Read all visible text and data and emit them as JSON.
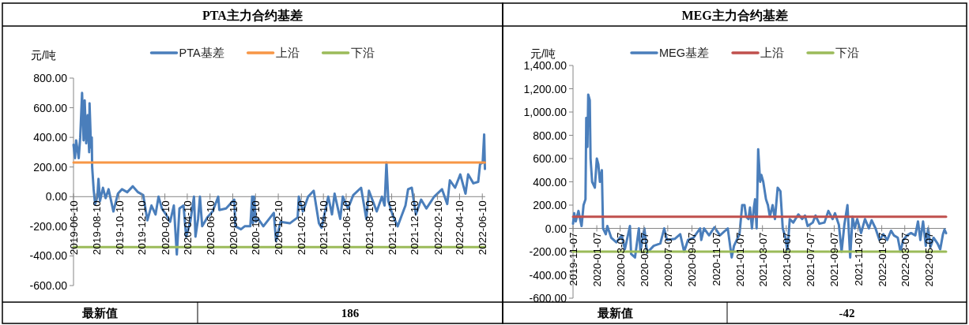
{
  "chart_data": [
    {
      "type": "line",
      "title": "PTA主力合约基差",
      "ylabel": "元/吨",
      "legend": "top",
      "xlim": [
        "2019-06-10",
        "2022-06-18"
      ],
      "xticks": [
        "2019-06-10",
        "2019-08-10",
        "2019-10-10",
        "2019-12-10",
        "2020-02-10",
        "2020-04-10",
        "2020-06-10",
        "2020-08-10",
        "2020-10-10",
        "2020-12-10",
        "2021-02-10",
        "2021-04-10",
        "2021-06-10",
        "2021-08-10",
        "2021-10-10",
        "2021-12-10",
        "2022-02-10",
        "2022-04-10",
        "2022-06-10"
      ],
      "ylim": [
        -600,
        800
      ],
      "yticks": [
        {
          "value": -600,
          "label": "-600.00"
        },
        {
          "value": -400,
          "label": "-400.00"
        },
        {
          "value": -200,
          "label": "-200.00"
        },
        {
          "value": 0,
          "label": "0.00"
        },
        {
          "value": 200,
          "label": "200.00"
        },
        {
          "value": 400,
          "label": "400.00"
        },
        {
          "value": 600,
          "label": "600.00"
        },
        {
          "value": 800,
          "label": "800.00"
        }
      ],
      "series": [
        {
          "name": "PTA基差",
          "color": "#4a7ebb",
          "x": [
            "2019-06-10",
            "2019-06-14",
            "2019-06-17",
            "2019-06-24",
            "2019-06-28",
            "2019-07-03",
            "2019-07-07",
            "2019-07-10",
            "2019-07-14",
            "2019-07-18",
            "2019-07-22",
            "2019-07-23",
            "2019-07-27",
            "2019-07-29",
            "2019-07-30",
            "2019-08-03",
            "2019-08-07",
            "2019-08-13",
            "2019-08-16",
            "2019-08-20",
            "2019-08-28",
            "2019-09-04",
            "2019-09-12",
            "2019-09-25",
            "2019-10-07",
            "2019-10-18",
            "2019-11-01",
            "2019-11-16",
            "2019-11-30",
            "2019-12-14",
            "2019-12-25",
            "2020-01-05",
            "2020-01-16",
            "2020-01-24",
            "2020-02-02",
            "2020-02-13",
            "2020-02-24",
            "2020-03-05",
            "2020-03-13",
            "2020-03-20",
            "2020-03-31",
            "2020-04-07",
            "2020-04-18",
            "2020-04-28",
            "2020-05-02",
            "2020-05-09",
            "2020-05-14",
            "2020-05-20",
            "2020-06-03",
            "2020-06-17",
            "2020-07-02",
            "2020-07-05",
            "2020-07-23",
            "2020-08-14",
            "2020-08-17",
            "2020-09-01",
            "2020-09-11",
            "2020-09-26",
            "2020-10-01",
            "2020-10-03",
            "2020-10-06",
            "2020-10-11",
            "2020-10-17",
            "2020-10-31",
            "2020-11-28",
            "2020-12-04",
            "2020-12-16",
            "2021-01-10",
            "2021-01-31",
            "2021-02-03",
            "2021-02-14",
            "2021-02-28",
            "2021-03-15",
            "2021-03-29",
            "2021-04-05",
            "2021-04-23",
            "2021-05-03",
            "2021-05-10",
            "2021-05-25",
            "2021-06-01",
            "2021-06-15",
            "2021-06-29",
            "2021-07-20",
            "2021-08-03",
            "2021-08-10",
            "2021-08-31",
            "2021-09-14",
            "2021-09-21",
            "2021-09-26",
            "2021-10-01",
            "2021-10-12",
            "2021-10-26",
            "2021-11-16",
            "2021-11-23",
            "2021-12-03",
            "2021-12-14",
            "2021-12-28",
            "2022-01-11",
            "2022-02-01",
            "2022-02-22",
            "2022-03-08",
            "2022-03-15",
            "2022-03-29",
            "2022-04-12",
            "2022-04-26",
            "2022-05-03",
            "2022-05-17",
            "2022-05-30",
            "2022-06-04",
            "2022-06-11",
            "2022-06-15",
            "2022-06-17"
          ],
          "values": [
            350,
            260,
            380,
            260,
            400,
            700,
            380,
            650,
            360,
            550,
            300,
            630,
            330,
            400,
            200,
            50,
            -50,
            0,
            120,
            -30,
            60,
            -10,
            50,
            -100,
            20,
            50,
            30,
            70,
            30,
            10,
            -160,
            -60,
            -120,
            0,
            -80,
            -120,
            -170,
            -60,
            -390,
            -80,
            -60,
            -270,
            -170,
            0,
            -270,
            -150,
            0,
            -200,
            -140,
            -100,
            0,
            -90,
            -80,
            -20,
            -200,
            -220,
            -200,
            -200,
            0,
            -180,
            0,
            -170,
            -150,
            -200,
            -110,
            -300,
            -170,
            -180,
            -140,
            0,
            -100,
            0,
            40,
            -180,
            -210,
            0,
            -120,
            20,
            -150,
            0,
            -80,
            10,
            60,
            -150,
            40,
            -100,
            0,
            -60,
            230,
            -30,
            -120,
            -200,
            -60,
            50,
            60,
            -120,
            -20,
            -80,
            0,
            50,
            -50,
            110,
            60,
            150,
            20,
            150,
            90,
            100,
            220,
            230,
            420,
            186
          ]
        },
        {
          "name": "上沿",
          "color": "#f79646",
          "x": [
            "2019-06-10",
            "2022-06-17"
          ],
          "values": [
            230,
            230
          ]
        },
        {
          "name": "下沿",
          "color": "#9bbb59",
          "x": [
            "2019-06-10",
            "2022-06-17"
          ],
          "values": [
            -340,
            -340
          ]
        }
      ],
      "annotations": [
        "最新值",
        "186"
      ]
    },
    {
      "type": "line",
      "title": "MEG主力合约基差",
      "ylabel": "元/吨",
      "legend": "top",
      "xlim": [
        "2019-11-07",
        "2022-06-21"
      ],
      "xticks": [
        "2019-11-07",
        "2020-01-07",
        "2020-03-07",
        "2020-05-07",
        "2020-07-07",
        "2020-09-07",
        "2020-11-07",
        "2021-01-07",
        "2021-03-07",
        "2021-05-07",
        "2021-07-07",
        "2021-09-07",
        "2021-11-07",
        "2022-01-07",
        "2022-03-07",
        "2022-05-07"
      ],
      "ylim": [
        -600,
        1400
      ],
      "yticks": [
        {
          "value": -600,
          "label": "-600.00"
        },
        {
          "value": -400,
          "label": "-400.00"
        },
        {
          "value": -200,
          "label": "-200.00"
        },
        {
          "value": 0,
          "label": "0.00"
        },
        {
          "value": 200,
          "label": "200.00"
        },
        {
          "value": 400,
          "label": "400.00"
        },
        {
          "value": 600,
          "label": "600.00"
        },
        {
          "value": 800,
          "label": "800.00"
        },
        {
          "value": 1000,
          "label": "1,000.00"
        },
        {
          "value": 1200,
          "label": "1,200.00"
        },
        {
          "value": 1400,
          "label": "1,400.00"
        }
      ],
      "series": [
        {
          "name": "MEG基差",
          "color": "#4a7ebb",
          "x": [
            "2019-11-07",
            "2019-11-10",
            "2019-11-14",
            "2019-11-21",
            "2019-11-25",
            "2019-11-29",
            "2019-12-04",
            "2019-12-09",
            "2019-12-11",
            "2019-12-14",
            "2019-12-16",
            "2019-12-20",
            "2019-12-22",
            "2019-12-26",
            "2020-01-02",
            "2020-01-07",
            "2020-01-11",
            "2020-01-15",
            "2020-01-20",
            "2020-01-23",
            "2020-01-30",
            "2020-02-03",
            "2020-02-13",
            "2020-02-26",
            "2020-03-11",
            "2020-03-19",
            "2020-04-01",
            "2020-04-04",
            "2020-04-14",
            "2020-04-24",
            "2020-04-28",
            "2020-05-08",
            "2020-05-15",
            "2020-06-01",
            "2020-06-18",
            "2020-06-28",
            "2020-07-05",
            "2020-07-25",
            "2020-08-08",
            "2020-08-18",
            "2020-08-28",
            "2020-09-11",
            "2020-09-28",
            "2020-10-01",
            "2020-10-08",
            "2020-10-21",
            "2020-11-04",
            "2020-11-18",
            "2020-12-08",
            "2020-12-18",
            "2020-12-24",
            "2021-01-07",
            "2021-01-14",
            "2021-01-20",
            "2021-01-24",
            "2021-01-30",
            "2021-02-03",
            "2021-02-08",
            "2021-02-13",
            "2021-02-16",
            "2021-02-20",
            "2021-02-24",
            "2021-03-01",
            "2021-03-04",
            "2021-03-09",
            "2021-03-16",
            "2021-03-21",
            "2021-03-26",
            "2021-04-02",
            "2021-04-08",
            "2021-04-15",
            "2021-04-22",
            "2021-04-28",
            "2021-05-05",
            "2021-05-10",
            "2021-05-16",
            "2021-05-25",
            "2021-06-07",
            "2021-06-17",
            "2021-06-24",
            "2021-07-01",
            "2021-07-14",
            "2021-07-21",
            "2021-07-31",
            "2021-08-13",
            "2021-08-23",
            "2021-09-03",
            "2021-09-09",
            "2021-09-19",
            "2021-09-26",
            "2021-10-03",
            "2021-10-11",
            "2021-10-18",
            "2021-10-24",
            "2021-10-30",
            "2021-11-05",
            "2021-11-15",
            "2021-11-25",
            "2021-12-05",
            "2021-12-12",
            "2021-12-22",
            "2022-01-01",
            "2022-01-11",
            "2022-01-21",
            "2022-01-31",
            "2022-02-07",
            "2022-02-17",
            "2022-02-24",
            "2022-03-03",
            "2022-03-13",
            "2022-03-23",
            "2022-04-03",
            "2022-04-10",
            "2022-04-16",
            "2022-04-23",
            "2022-04-30",
            "2022-05-06",
            "2022-05-12",
            "2022-05-20",
            "2022-05-30",
            "2022-06-06",
            "2022-06-13",
            "2022-06-17",
            "2022-06-21"
          ],
          "values": [
            40,
            130,
            60,
            150,
            80,
            20,
            200,
            250,
            950,
            700,
            1150,
            1100,
            600,
            400,
            350,
            600,
            550,
            400,
            500,
            0,
            -50,
            20,
            -80,
            -120,
            -60,
            -180,
            20,
            -220,
            -250,
            0,
            -200,
            0,
            -210,
            -150,
            -130,
            0,
            -100,
            -90,
            -50,
            -200,
            -100,
            -80,
            0,
            -100,
            0,
            -60,
            10,
            -60,
            0,
            -250,
            -150,
            -50,
            200,
            200,
            100,
            80,
            180,
            0,
            180,
            250,
            0,
            680,
            400,
            460,
            400,
            250,
            200,
            100,
            200,
            80,
            350,
            320,
            0,
            -80,
            -200,
            80,
            50,
            120,
            80,
            110,
            20,
            50,
            110,
            40,
            50,
            150,
            80,
            130,
            30,
            -200,
            30,
            200,
            -250,
            100,
            0,
            80,
            -40,
            80,
            0,
            70,
            0,
            -100,
            -50,
            -100,
            -20,
            -60,
            -80,
            -200,
            -100,
            -60,
            -40,
            -60,
            60,
            -100,
            60,
            -150,
            0,
            -160,
            -80,
            -130,
            -180,
            -50,
            -10,
            -42
          ]
        },
        {
          "name": "上沿",
          "color": "#c0504d",
          "x": [
            "2019-11-07",
            "2022-06-21"
          ],
          "values": [
            100,
            100
          ]
        },
        {
          "name": "下沿",
          "color": "#9bbb59",
          "x": [
            "2019-11-07",
            "2022-06-21"
          ],
          "values": [
            -200,
            -200
          ]
        }
      ],
      "annotations": [
        "最新值",
        "-42"
      ]
    }
  ]
}
